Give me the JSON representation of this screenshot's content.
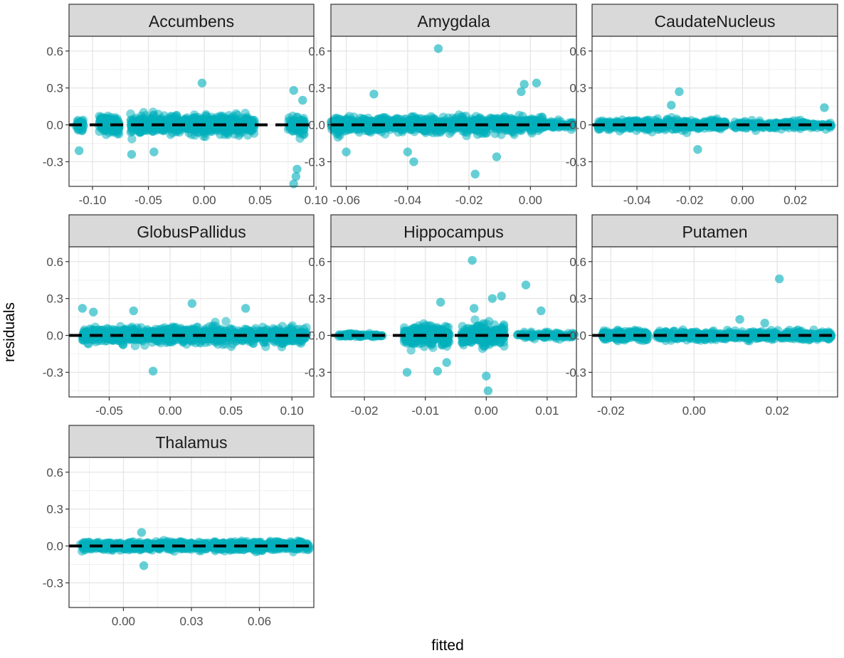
{
  "chart_data": {
    "type": "scatter",
    "xlabel": "fitted",
    "ylabel": "residuals",
    "ylim": [
      -0.5,
      0.72
    ],
    "yticks": [
      -0.3,
      0.0,
      0.3,
      0.6
    ],
    "ytick_labels": [
      "-0.3",
      "0.0",
      "0.3",
      "0.6"
    ],
    "reference_line_y": 0,
    "point_color": "#00AFBB",
    "panel_strip_color": "#D9D9D9",
    "panels": [
      {
        "name": "Accumbens",
        "xlim": [
          -0.121,
          0.098
        ],
        "xticks": [
          -0.1,
          -0.05,
          0.0,
          0.05,
          0.1
        ],
        "xtick_labels": [
          "-0.10",
          "-0.05",
          "0.00",
          "0.05",
          "0.10"
        ],
        "clusters": [
          {
            "x": [
              -0.115,
              -0.108
            ],
            "sd": 0.055,
            "n": 25
          },
          {
            "x": [
              -0.094,
              -0.076
            ],
            "sd": 0.06,
            "n": 120
          },
          {
            "x": [
              -0.066,
              0.045
            ],
            "sd": 0.06,
            "n": 700
          },
          {
            "x": [
              0.075,
              0.09
            ],
            "sd": 0.07,
            "n": 90
          }
        ],
        "points": [
          {
            "x": -0.002,
            "y": 0.34
          },
          {
            "x": 0.08,
            "y": 0.28
          },
          {
            "x": 0.083,
            "y": -0.36
          },
          {
            "x": 0.082,
            "y": -0.42
          },
          {
            "x": 0.08,
            "y": -0.5
          },
          {
            "x": -0.112,
            "y": -0.21
          },
          {
            "x": 0.088,
            "y": 0.2
          },
          {
            "x": -0.065,
            "y": -0.24
          },
          {
            "x": -0.045,
            "y": -0.22
          }
        ]
      },
      {
        "name": "Amygdala",
        "xlim": [
          -0.065,
          0.015
        ],
        "xticks": [
          -0.06,
          -0.04,
          -0.02,
          0.0
        ],
        "xtick_labels": [
          "-0.06",
          "-0.04",
          "-0.02",
          "0.00"
        ],
        "clusters": [
          {
            "x": [
              -0.065,
              0.004
            ],
            "sd": 0.055,
            "n": 850
          },
          {
            "x": [
              0.004,
              0.014
            ],
            "sd": 0.03,
            "n": 60
          }
        ],
        "points": [
          {
            "x": -0.03,
            "y": 0.62
          },
          {
            "x": -0.051,
            "y": 0.25
          },
          {
            "x": -0.002,
            "y": 0.33
          },
          {
            "x": 0.002,
            "y": 0.34
          },
          {
            "x": -0.038,
            "y": -0.3
          },
          {
            "x": -0.018,
            "y": -0.4
          },
          {
            "x": -0.011,
            "y": -0.26
          },
          {
            "x": -0.06,
            "y": -0.22
          },
          {
            "x": -0.04,
            "y": -0.22
          },
          {
            "x": -0.003,
            "y": 0.27
          }
        ]
      },
      {
        "name": "CaudateNucleus",
        "xlim": [
          -0.057,
          0.036
        ],
        "xticks": [
          -0.04,
          -0.02,
          0.0,
          0.02
        ],
        "xtick_labels": [
          "-0.04",
          "-0.02",
          "0.00",
          "0.02"
        ],
        "clusters": [
          {
            "x": [
              -0.055,
              -0.006
            ],
            "sd": 0.035,
            "n": 450
          },
          {
            "x": [
              -0.004,
              0.034
            ],
            "sd": 0.025,
            "n": 220
          }
        ],
        "points": [
          {
            "x": -0.024,
            "y": 0.27
          },
          {
            "x": 0.031,
            "y": 0.14
          },
          {
            "x": -0.017,
            "y": -0.2
          },
          {
            "x": -0.027,
            "y": 0.16
          }
        ]
      },
      {
        "name": "GlobusPallidus",
        "xlim": [
          -0.083,
          0.118
        ],
        "xticks": [
          -0.05,
          0.0,
          0.05,
          0.1
        ],
        "xtick_labels": [
          "-0.05",
          "0.00",
          "0.05",
          "0.10"
        ],
        "clusters": [
          {
            "x": [
              -0.072,
              0.112
            ],
            "sd": 0.055,
            "n": 950
          }
        ],
        "points": [
          {
            "x": -0.072,
            "y": 0.22
          },
          {
            "x": 0.018,
            "y": 0.26
          },
          {
            "x": -0.014,
            "y": -0.29
          },
          {
            "x": 0.062,
            "y": 0.22
          },
          {
            "x": -0.063,
            "y": 0.19
          },
          {
            "x": -0.03,
            "y": 0.2
          }
        ]
      },
      {
        "name": "Hippocampus",
        "xlim": [
          -0.0255,
          0.0148
        ],
        "xticks": [
          -0.02,
          -0.01,
          0.0,
          0.01
        ],
        "xtick_labels": [
          "-0.02",
          "-0.01",
          "0.00",
          "0.01"
        ],
        "clusters": [
          {
            "x": [
              -0.0245,
              -0.017
            ],
            "sd": 0.012,
            "n": 70
          },
          {
            "x": [
              -0.0135,
              -0.006
            ],
            "sd": 0.07,
            "n": 280
          },
          {
            "x": [
              -0.004,
              0.003
            ],
            "sd": 0.07,
            "n": 280
          },
          {
            "x": [
              0.005,
              0.0145
            ],
            "sd": 0.025,
            "n": 90
          }
        ],
        "points": [
          {
            "x": -0.0023,
            "y": 0.61
          },
          {
            "x": 0.0065,
            "y": 0.41
          },
          {
            "x": 0.0025,
            "y": 0.32
          },
          {
            "x": 0.001,
            "y": 0.3
          },
          {
            "x": -0.0075,
            "y": 0.27
          },
          {
            "x": -0.002,
            "y": 0.22
          },
          {
            "x": 0.009,
            "y": 0.2
          },
          {
            "x": -0.013,
            "y": -0.3
          },
          {
            "x": -0.008,
            "y": -0.29
          },
          {
            "x": 0.0,
            "y": -0.33
          },
          {
            "x": 0.0003,
            "y": -0.45
          },
          {
            "x": -0.0065,
            "y": -0.22
          }
        ]
      },
      {
        "name": "Putamen",
        "xlim": [
          -0.0245,
          0.0345
        ],
        "xticks": [
          -0.02,
          0.0,
          0.02
        ],
        "xtick_labels": [
          "-0.02",
          "0.00",
          "0.02"
        ],
        "clusters": [
          {
            "x": [
              -0.022,
              -0.011
            ],
            "sd": 0.03,
            "n": 220
          },
          {
            "x": [
              -0.009,
              0.033
            ],
            "sd": 0.03,
            "n": 520
          }
        ],
        "points": [
          {
            "x": 0.0205,
            "y": 0.46
          },
          {
            "x": 0.011,
            "y": 0.13
          },
          {
            "x": 0.017,
            "y": 0.1
          }
        ]
      },
      {
        "name": "Thalamus",
        "xlim": [
          -0.024,
          0.084
        ],
        "xticks": [
          0.0,
          0.03,
          0.06
        ],
        "xtick_labels": [
          "0.00",
          "0.03",
          "0.06"
        ],
        "clusters": [
          {
            "x": [
              -0.019,
              0.082
            ],
            "sd": 0.03,
            "n": 900
          }
        ],
        "points": [
          {
            "x": 0.009,
            "y": -0.16
          },
          {
            "x": 0.008,
            "y": 0.11
          }
        ]
      }
    ]
  }
}
